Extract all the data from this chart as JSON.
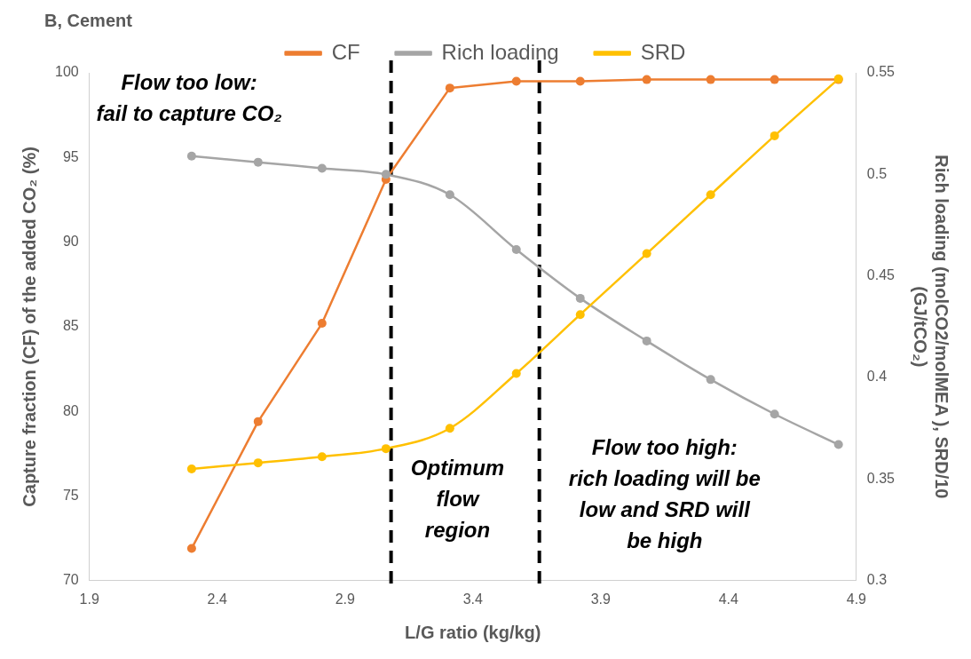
{
  "chart_data": {
    "type": "line",
    "title": "B, Cement",
    "xlabel": "L/G ratio (kg/kg)",
    "ylabel": "Capture fraction (CF) of the added CO₂ (%)",
    "y2label": "Rich loading (molCO2/molMEA ), SRD/10\n(GJ/tCO₂)",
    "x": [
      2.3,
      2.56,
      2.81,
      3.06,
      3.31,
      3.57,
      3.82,
      4.08,
      4.33,
      4.58,
      4.83
    ],
    "series": [
      {
        "name": "CF",
        "color": "#ed7d31",
        "values": [
          71.9,
          79.4,
          85.2,
          93.7,
          99.1,
          99.5,
          99.5,
          99.6,
          99.6,
          99.6,
          99.6
        ]
      },
      {
        "name": "Rich loading",
        "color": "#a5a5a5",
        "axis": "y2",
        "values": [
          0.509,
          0.506,
          0.503,
          0.5,
          0.49,
          0.463,
          0.439,
          0.418,
          0.399,
          0.382,
          0.367
        ]
      },
      {
        "name": "SRD",
        "color": "#ffc000",
        "axis": "y2",
        "values": [
          0.355,
          0.358,
          0.361,
          0.365,
          0.375,
          0.402,
          0.431,
          0.461,
          0.49,
          0.519,
          0.547
        ]
      }
    ],
    "xlim": [
      1.9,
      4.9
    ],
    "xticks": [
      1.9,
      2.4,
      2.9,
      3.4,
      3.9,
      4.4,
      4.9
    ],
    "ylim": [
      70,
      100
    ],
    "yticks": [
      70,
      75,
      80,
      85,
      90,
      95,
      100
    ],
    "y2lim": [
      0.3,
      0.55
    ],
    "y2ticks": [
      0.3,
      0.35,
      0.4,
      0.45,
      0.5,
      0.55
    ],
    "ref_lines": [
      {
        "axis": "x",
        "value": 3.08,
        "color": "#000000",
        "line_style": "dashed"
      },
      {
        "axis": "x",
        "value": 3.66,
        "color": "#000000",
        "line_style": "dashed"
      }
    ],
    "annotations": [
      "Flow too low:\nfail to capture CO₂",
      "Optimum\nflow\nregion",
      "Flow too high:\nrich loading will be\nlow and SRD will\nbe high"
    ],
    "legend": "top",
    "grid": false,
    "marker": "circle",
    "line_style": "solid"
  }
}
